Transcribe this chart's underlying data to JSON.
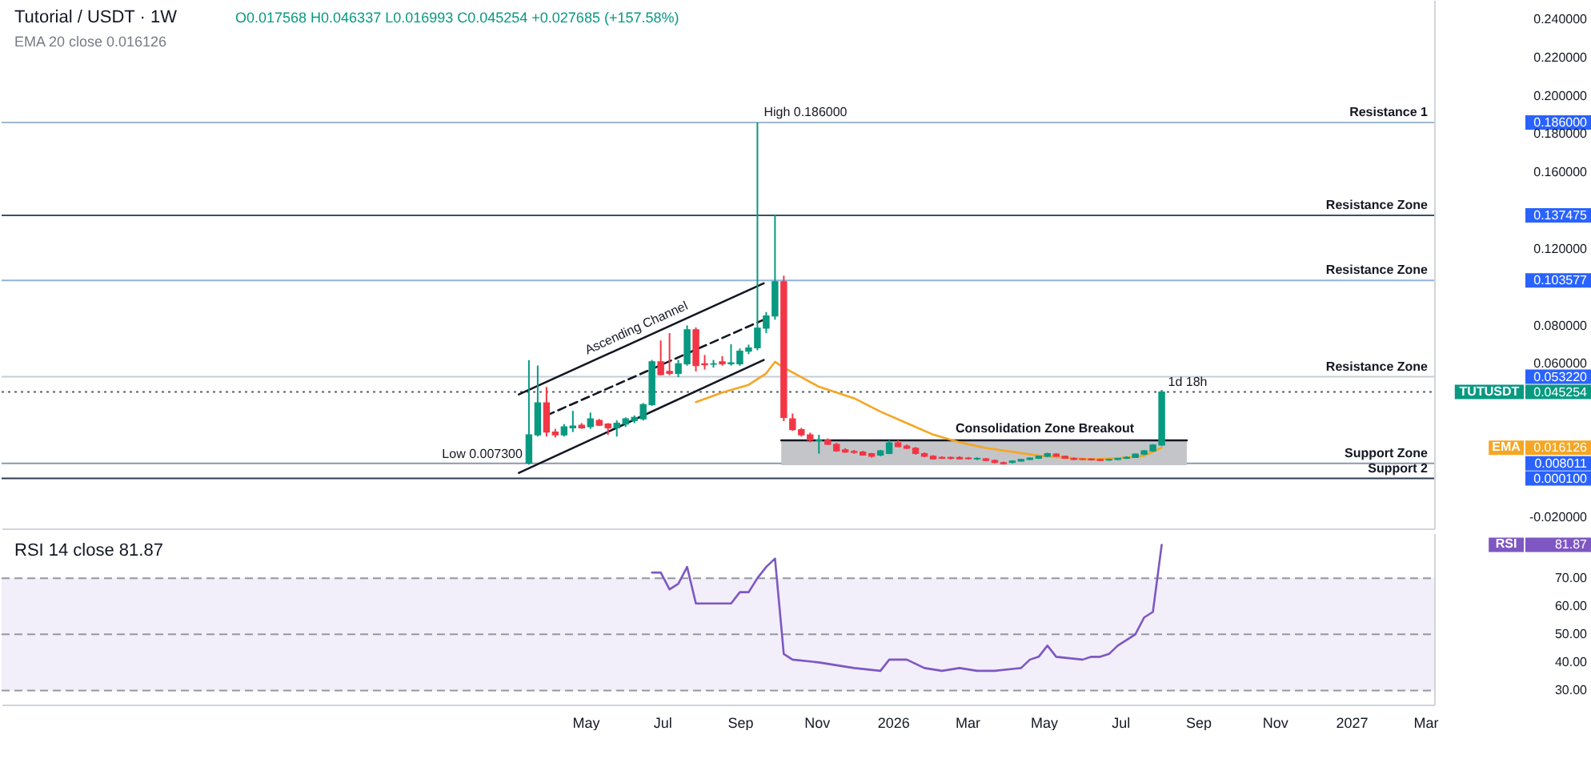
{
  "chart_data": [
    {
      "type": "candlestick",
      "title": "Tutorial / USDT · 1W",
      "subtitle": "O0.017568 H0.046337 L0.016993 C0.045254 +0.027685 (+157.58%)",
      "legend": "right",
      "series": [
        {
          "name": "TUTUSDT",
          "x": [
            "2025-03-17",
            "2025-03-24",
            "2025-03-31",
            "2025-04-07",
            "2025-04-14",
            "2025-04-21",
            "2025-04-28",
            "2025-05-05",
            "2025-05-12",
            "2025-05-19",
            "2025-05-26",
            "2025-06-02",
            "2025-06-09",
            "2025-06-16",
            "2025-06-23",
            "2025-06-30",
            "2025-07-07",
            "2025-07-14",
            "2025-07-21",
            "2025-07-28",
            "2025-08-04",
            "2025-08-11",
            "2025-08-18",
            "2025-08-25",
            "2025-09-01",
            "2025-09-08",
            "2025-09-15",
            "2025-09-22",
            "2025-09-29",
            "2025-10-06",
            "2025-10-13",
            "2025-10-20",
            "2025-10-27",
            "2025-11-03",
            "2025-11-10",
            "2025-11-17",
            "2025-11-24",
            "2025-12-01",
            "2025-12-08",
            "2025-12-15",
            "2025-12-22",
            "2025-12-29",
            "2026-01-05",
            "2026-01-12",
            "2026-01-19",
            "2026-01-26",
            "2026-02-02",
            "2026-02-09",
            "2026-02-16",
            "2026-02-23",
            "2026-03-02",
            "2026-03-09",
            "2026-03-16",
            "2026-03-23",
            "2026-03-30",
            "2026-04-06",
            "2026-04-13",
            "2026-04-20",
            "2026-04-27",
            "2026-05-04",
            "2026-05-11",
            "2026-05-18",
            "2026-05-25",
            "2026-06-01",
            "2026-06-08",
            "2026-06-15",
            "2026-06-22",
            "2026-06-29",
            "2026-07-06",
            "2026-07-13",
            "2026-07-20",
            "2026-07-27",
            "2026-08-03"
          ],
          "ohlc": [
            [
              0.0081,
              0.0619,
              0.0073,
              0.0229
            ],
            [
              0.0229,
              0.0591,
              0.022,
              0.0396
            ],
            [
              0.0396,
              0.0479,
              0.022,
              0.0243
            ],
            [
              0.0243,
              0.026,
              0.0215,
              0.0229
            ],
            [
              0.0229,
              0.0285,
              0.022,
              0.0271
            ],
            [
              0.0265,
              0.0354,
              0.0243,
              0.0275
            ],
            [
              0.0279,
              0.029,
              0.026,
              0.0265
            ],
            [
              0.0271,
              0.0345,
              0.026,
              0.0312
            ],
            [
              0.0304,
              0.0312,
              0.0275,
              0.0279
            ],
            [
              0.0285,
              0.029,
              0.0229,
              0.0265
            ],
            [
              0.0265,
              0.0304,
              0.022,
              0.029
            ],
            [
              0.0285,
              0.032,
              0.027,
              0.0312
            ],
            [
              0.0304,
              0.033,
              0.029,
              0.032
            ],
            [
              0.0312,
              0.0395,
              0.0304,
              0.0387
            ],
            [
              0.0387,
              0.062,
              0.038,
              0.061
            ],
            [
              0.061,
              0.0722,
              0.054,
              0.0543
            ],
            [
              0.056,
              0.076,
              0.054,
              0.055
            ],
            [
              0.055,
              0.062,
              0.053,
              0.06
            ],
            [
              0.06,
              0.08,
              0.059,
              0.0778
            ],
            [
              0.0778,
              0.079,
              0.056,
              0.059
            ],
            [
              0.06,
              0.0646,
              0.057,
              0.0595
            ],
            [
              0.0598,
              0.062,
              0.058,
              0.06
            ],
            [
              0.061,
              0.064,
              0.059,
              0.06
            ],
            [
              0.06,
              0.0702,
              0.059,
              0.0605
            ],
            [
              0.06,
              0.068,
              0.059,
              0.0666
            ],
            [
              0.0666,
              0.07,
              0.065,
              0.0683
            ],
            [
              0.0683,
              0.186,
              0.067,
              0.0786
            ],
            [
              0.0786,
              0.087,
              0.076,
              0.085
            ],
            [
              0.085,
              0.138,
              0.083,
              0.1029
            ],
            [
              0.1029,
              0.106,
              0.03,
              0.032
            ],
            [
              0.0312,
              0.034,
              0.025,
              0.0256
            ],
            [
              0.0256,
              0.0265,
              0.022,
              0.0229
            ],
            [
              0.0229,
              0.024,
              0.019,
              0.0201
            ],
            [
              0.0198,
              0.0229,
              0.0131,
              0.0201
            ],
            [
              0.0201,
              0.021,
              0.0175,
              0.0179
            ],
            [
              0.0179,
              0.0187,
              0.014,
              0.0145
            ],
            [
              0.015,
              0.0159,
              0.0135,
              0.0139
            ],
            [
              0.0142,
              0.015,
              0.013,
              0.0137
            ],
            [
              0.0139,
              0.0145,
              0.012,
              0.0123
            ],
            [
              0.0131,
              0.0135,
              0.011,
              0.0117
            ],
            [
              0.0123,
              0.015,
              0.0117,
              0.0145
            ],
            [
              0.0131,
              0.0201,
              0.0128,
              0.0187
            ],
            [
              0.0187,
              0.0201,
              0.0165,
              0.0167
            ],
            [
              0.017,
              0.0178,
              0.0155,
              0.0159
            ],
            [
              0.0159,
              0.0165,
              0.0125,
              0.0131
            ],
            [
              0.0131,
              0.0137,
              0.0112,
              0.0117
            ],
            [
              0.0117,
              0.0123,
              0.01,
              0.0103
            ],
            [
              0.0111,
              0.0117,
              0.0103,
              0.0106
            ],
            [
              0.0111,
              0.0115,
              0.01,
              0.0106
            ],
            [
              0.0111,
              0.0117,
              0.01,
              0.0103
            ],
            [
              0.0108,
              0.0113,
              0.01,
              0.0104
            ],
            [
              0.0103,
              0.0111,
              0.0097,
              0.0106
            ],
            [
              0.0103,
              0.0108,
              0.0092,
              0.0095
            ],
            [
              0.0095,
              0.01,
              0.008,
              0.0084
            ],
            [
              0.0084,
              0.0089,
              0.0076,
              0.0078
            ],
            [
              0.0084,
              0.0095,
              0.008,
              0.0092
            ],
            [
              0.0092,
              0.0103,
              0.0089,
              0.01
            ],
            [
              0.01,
              0.0111,
              0.0097,
              0.0108
            ],
            [
              0.0106,
              0.012,
              0.0103,
              0.0117
            ],
            [
              0.0117,
              0.0135,
              0.0112,
              0.0131
            ],
            [
              0.0128,
              0.0133,
              0.0115,
              0.0117
            ],
            [
              0.0117,
              0.012,
              0.0103,
              0.0106
            ],
            [
              0.0106,
              0.0111,
              0.0097,
              0.01
            ],
            [
              0.0103,
              0.0106,
              0.0097,
              0.01
            ],
            [
              0.0103,
              0.0106,
              0.0095,
              0.0098
            ],
            [
              0.01,
              0.0103,
              0.0092,
              0.0095
            ],
            [
              0.0097,
              0.0103,
              0.0094,
              0.01
            ],
            [
              0.01,
              0.0108,
              0.0097,
              0.0106
            ],
            [
              0.0106,
              0.0117,
              0.0103,
              0.0111
            ],
            [
              0.0111,
              0.0131,
              0.0108,
              0.0128
            ],
            [
              0.0128,
              0.015,
              0.0123,
              0.0145
            ],
            [
              0.0145,
              0.018,
              0.014,
              0.0176
            ],
            [
              0.017568,
              0.046337,
              0.016993,
              0.045254
            ]
          ],
          "colors": [
            "#089981",
            "#089981",
            "#f23645",
            "#f23645",
            "#089981",
            "#089981",
            "#f23645",
            "#089981",
            "#f23645",
            "#f23645",
            "#089981",
            "#089981",
            "#089981",
            "#089981",
            "#089981",
            "#f23645",
            "#f23645",
            "#089981",
            "#089981",
            "#f23645",
            "#f23645",
            "#089981",
            "#f23645",
            "#089981",
            "#089981",
            "#089981",
            "#089981",
            "#089981",
            "#089981",
            "#f23645",
            "#f23645",
            "#f23645",
            "#f23645",
            "#089981",
            "#f23645",
            "#f23645",
            "#f23645",
            "#f23645",
            "#f23645",
            "#f23645",
            "#089981",
            "#089981",
            "#f23645",
            "#f23645",
            "#f23645",
            "#f23645",
            "#f23645",
            "#f23645",
            "#f23645",
            "#f23645",
            "#f23645",
            "#089981",
            "#f23645",
            "#f23645",
            "#f23645",
            "#089981",
            "#089981",
            "#089981",
            "#089981",
            "#089981",
            "#f23645",
            "#f23645",
            "#f23645",
            "#f23645",
            "#f23645",
            "#f23645",
            "#089981",
            "#089981",
            "#089981",
            "#089981",
            "#089981",
            "#089981",
            "#089981"
          ]
        },
        {
          "type": "line",
          "name": "EMA",
          "color": "#f5a623",
          "x": [
            "2025-07-28",
            "2025-08-18",
            "2025-09-08",
            "2025-09-22",
            "2025-09-29",
            "2025-10-06",
            "2025-11-03",
            "2025-12-01",
            "2025-12-22",
            "2026-01-12",
            "2026-02-02",
            "2026-02-23",
            "2026-03-16",
            "2026-04-27",
            "2026-06-08",
            "2026-07-06",
            "2026-07-20",
            "2026-08-03"
          ],
          "values": [
            0.04,
            0.045,
            0.049,
            0.055,
            0.061,
            0.058,
            0.048,
            0.042,
            0.035,
            0.029,
            0.023,
            0.019,
            0.016,
            0.012,
            0.01,
            0.011,
            0.012,
            0.016126
          ]
        },
        {
          "type": "line",
          "name": "Ascending Channel",
          "color": "#131722",
          "x": [
            "2025-03-09",
            "2025-09-20"
          ],
          "values": [
            0.044,
            0.102
          ]
        },
        {
          "type": "line",
          "color": "#131722",
          "x": [
            "2025-03-09",
            "2025-09-20"
          ],
          "values": [
            0.003,
            0.062
          ]
        },
        {
          "type": "line",
          "color": "#131722",
          "line_style": "dashed",
          "x": [
            "2025-03-31",
            "2025-09-20"
          ],
          "values": [
            0.033,
            0.083
          ]
        },
        {
          "type": "line",
          "name": "Consolidation Zone Breakout",
          "color": "#131722",
          "x": [
            "2025-10-04",
            "2026-08-23"
          ],
          "values": [
            0.02,
            0.02
          ],
          "lower": [
            0.007,
            0.007
          ],
          "upper": [
            0.02,
            0.02
          ]
        }
      ],
      "xlim": [
        "2024-01-22",
        "2027-03-08"
      ],
      "ylim": [
        -0.026,
        0.25
      ],
      "yticks": [
        {
          "value": 0.24,
          "label": "0.240000"
        },
        {
          "value": 0.22,
          "label": "0.220000"
        },
        {
          "value": 0.2,
          "label": "0.200000"
        },
        {
          "value": 0.186,
          "label": "0.186000"
        },
        {
          "value": 0.18,
          "label": "0.180000"
        },
        {
          "value": 0.16,
          "label": "0.160000"
        },
        {
          "value": 0.137475,
          "label": "0.137475"
        },
        {
          "value": 0.12,
          "label": "0.120000"
        },
        {
          "value": 0.103577,
          "label": "0.103577"
        },
        {
          "value": 0.08,
          "label": "0.080000"
        },
        {
          "value": 0.06,
          "label": "0.060000"
        },
        {
          "value": 0.05322,
          "label": "0.053220"
        },
        {
          "value": 0.045254,
          "label": "0.045254"
        },
        {
          "value": 0.016126,
          "label": "0.016126"
        },
        {
          "value": 0.008011,
          "label": "0.008011"
        },
        {
          "value": 0.0001,
          "label": "0.000100"
        },
        {
          "value": -0.02,
          "label": "-0.020000"
        }
      ],
      "tick_labels": "y",
      "ref_lines": [
        {
          "axis": "y",
          "value": 0.186,
          "label": "Resistance 1",
          "color": "#9fb6cd"
        },
        {
          "axis": "y",
          "value": 0.137475,
          "label": "Resistance Zone",
          "color": "#3d4f6b"
        },
        {
          "axis": "y",
          "value": 0.103577,
          "label": "Resistance Zone",
          "color": "#8fb3d9"
        },
        {
          "axis": "y",
          "value": 0.05322,
          "label": "Resistance Zone",
          "color": "#c5cdd6"
        },
        {
          "axis": "y",
          "value": 0.045254,
          "color": "#5d606b",
          "line_style": "dotted"
        },
        {
          "axis": "y",
          "value": 0.008011,
          "label": "Support Zone",
          "color": "#8a99ab"
        },
        {
          "axis": "y",
          "value": 0.0001,
          "label": "Support 2",
          "color": "#2f3d52"
        }
      ],
      "annotations": [
        "EMA 20 close 0.016126",
        {
          "text": "High 0.186000",
          "x": "2025-09-15",
          "y": 0.186
        },
        {
          "text": "Low 0.007300",
          "x": "2025-03-17",
          "y": 0.0073
        },
        {
          "text": "1d 18h",
          "x": "2026-08-03",
          "y": 0.045254
        }
      ]
    },
    {
      "type": "line",
      "title": "RSI 14 close 81.87",
      "legend": "right",
      "series": [
        {
          "name": "RSI",
          "color": "#7e57c2",
          "x": [
            "2025-06-23",
            "2025-06-30",
            "2025-07-07",
            "2025-07-14",
            "2025-07-21",
            "2025-07-28",
            "2025-08-11",
            "2025-08-25",
            "2025-09-01",
            "2025-09-08",
            "2025-09-15",
            "2025-09-22",
            "2025-09-29",
            "2025-10-06",
            "2025-10-13",
            "2025-11-03",
            "2025-11-17",
            "2025-12-01",
            "2025-12-22",
            "2025-12-29",
            "2026-01-12",
            "2026-01-26",
            "2026-02-09",
            "2026-02-23",
            "2026-03-09",
            "2026-03-23",
            "2026-04-13",
            "2026-04-20",
            "2026-04-27",
            "2026-05-04",
            "2026-05-11",
            "2026-06-01",
            "2026-06-08",
            "2026-06-15",
            "2026-06-22",
            "2026-06-29",
            "2026-07-13",
            "2026-07-20",
            "2026-07-27",
            "2026-08-03"
          ],
          "values": [
            72,
            72,
            66,
            68,
            74,
            61,
            61,
            61,
            65,
            65,
            70,
            74,
            77,
            43,
            41,
            40,
            39,
            38,
            37,
            41,
            41,
            38,
            37,
            38,
            37,
            37,
            38,
            41,
            42,
            46,
            42,
            41,
            42,
            42,
            43,
            46,
            50,
            56,
            58,
            81.87
          ]
        }
      ],
      "xlim": [
        "2024-01-22",
        "2027-03-08"
      ],
      "xticks": [
        {
          "value": "2025-05-01",
          "label": "May"
        },
        {
          "value": "2025-07-01",
          "label": "Jul"
        },
        {
          "value": "2025-09-01",
          "label": "Sep"
        },
        {
          "value": "2025-11-01",
          "label": "Nov"
        },
        {
          "value": "2026-01-01",
          "label": "2026"
        },
        {
          "value": "2026-03-01",
          "label": "Mar"
        },
        {
          "value": "2026-05-01",
          "label": "May"
        },
        {
          "value": "2026-07-01",
          "label": "Jul"
        },
        {
          "value": "2026-09-01",
          "label": "Sep"
        },
        {
          "value": "2026-11-01",
          "label": "Nov"
        },
        {
          "value": "2027-01-01",
          "label": "2027"
        },
        {
          "value": "2027-03-01",
          "label": "Mar"
        }
      ],
      "ylim": [
        25,
        86
      ],
      "yticks": [
        {
          "value": 30,
          "label": "30.00"
        },
        {
          "value": 40,
          "label": "40.00"
        },
        {
          "value": 50,
          "label": "50.00"
        },
        {
          "value": 60,
          "label": "60.00"
        },
        {
          "value": 70,
          "label": "70.00"
        },
        {
          "value": 81.87,
          "label": "81.87"
        }
      ],
      "ref_lines": [
        {
          "axis": "y",
          "value": 70,
          "color": "#9598a1",
          "line_style": "dashed"
        },
        {
          "axis": "y",
          "value": 50,
          "color": "#9598a1",
          "line_style": "dashed"
        },
        {
          "axis": "y",
          "value": 30,
          "color": "#9598a1",
          "line_style": "dashed"
        }
      ],
      "bands": [
        {
          "axis": "y",
          "from": 30,
          "to": 70,
          "color": "#f2eefa"
        }
      ]
    }
  ]
}
